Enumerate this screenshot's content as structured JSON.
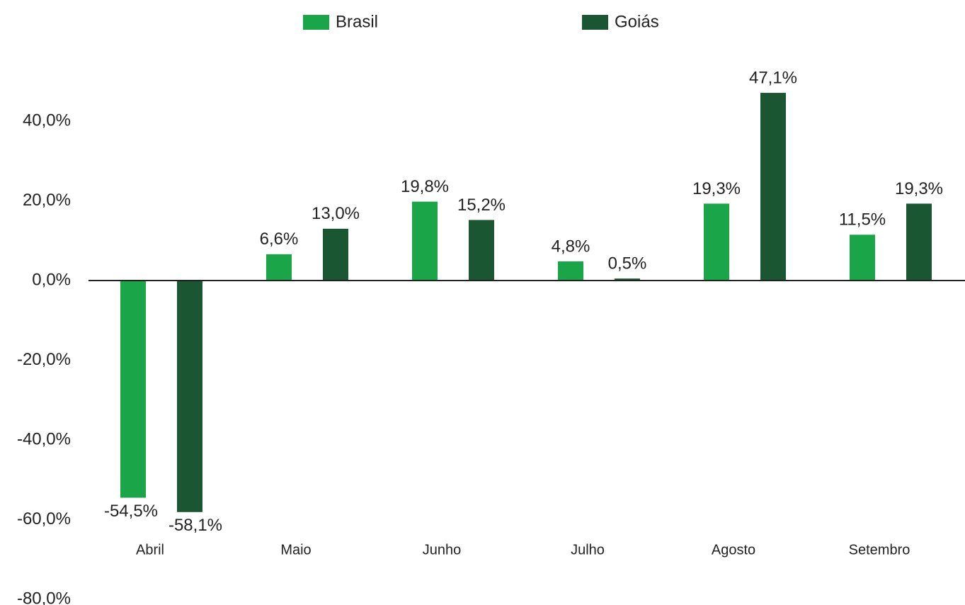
{
  "chart_data": {
    "type": "bar",
    "categories": [
      "Abril",
      "Maio",
      "Junho",
      "Julho",
      "Agosto",
      "Setembro"
    ],
    "series": [
      {
        "name": "Brasil",
        "color": "#1ba549",
        "values": [
          -54.5,
          6.6,
          19.8,
          4.8,
          19.3,
          11.5
        ],
        "value_labels": [
          "-54,5%",
          "6,6%",
          "19,8%",
          "4,8%",
          "19,3%",
          "11,5%"
        ]
      },
      {
        "name": "Goiás",
        "color": "#1a5632",
        "values": [
          -58.1,
          13.0,
          15.2,
          0.5,
          47.1,
          19.3
        ],
        "value_labels": [
          "-58,1%",
          "13,0%",
          "15,2%",
          "0,5%",
          "47,1%",
          "19,3%"
        ]
      }
    ],
    "ylim": [
      -80,
      60
    ],
    "yticks": [
      {
        "value": -80,
        "label": "-80,0%"
      },
      {
        "value": -60,
        "label": "-60,0%"
      },
      {
        "value": -40,
        "label": "-40,0%"
      },
      {
        "value": -20,
        "label": "-20,0%"
      },
      {
        "value": 0,
        "label": "0,0%"
      },
      {
        "value": 20,
        "label": "20,0%"
      },
      {
        "value": 40,
        "label": "40,0%"
      }
    ],
    "grid": false,
    "legend": "top"
  }
}
